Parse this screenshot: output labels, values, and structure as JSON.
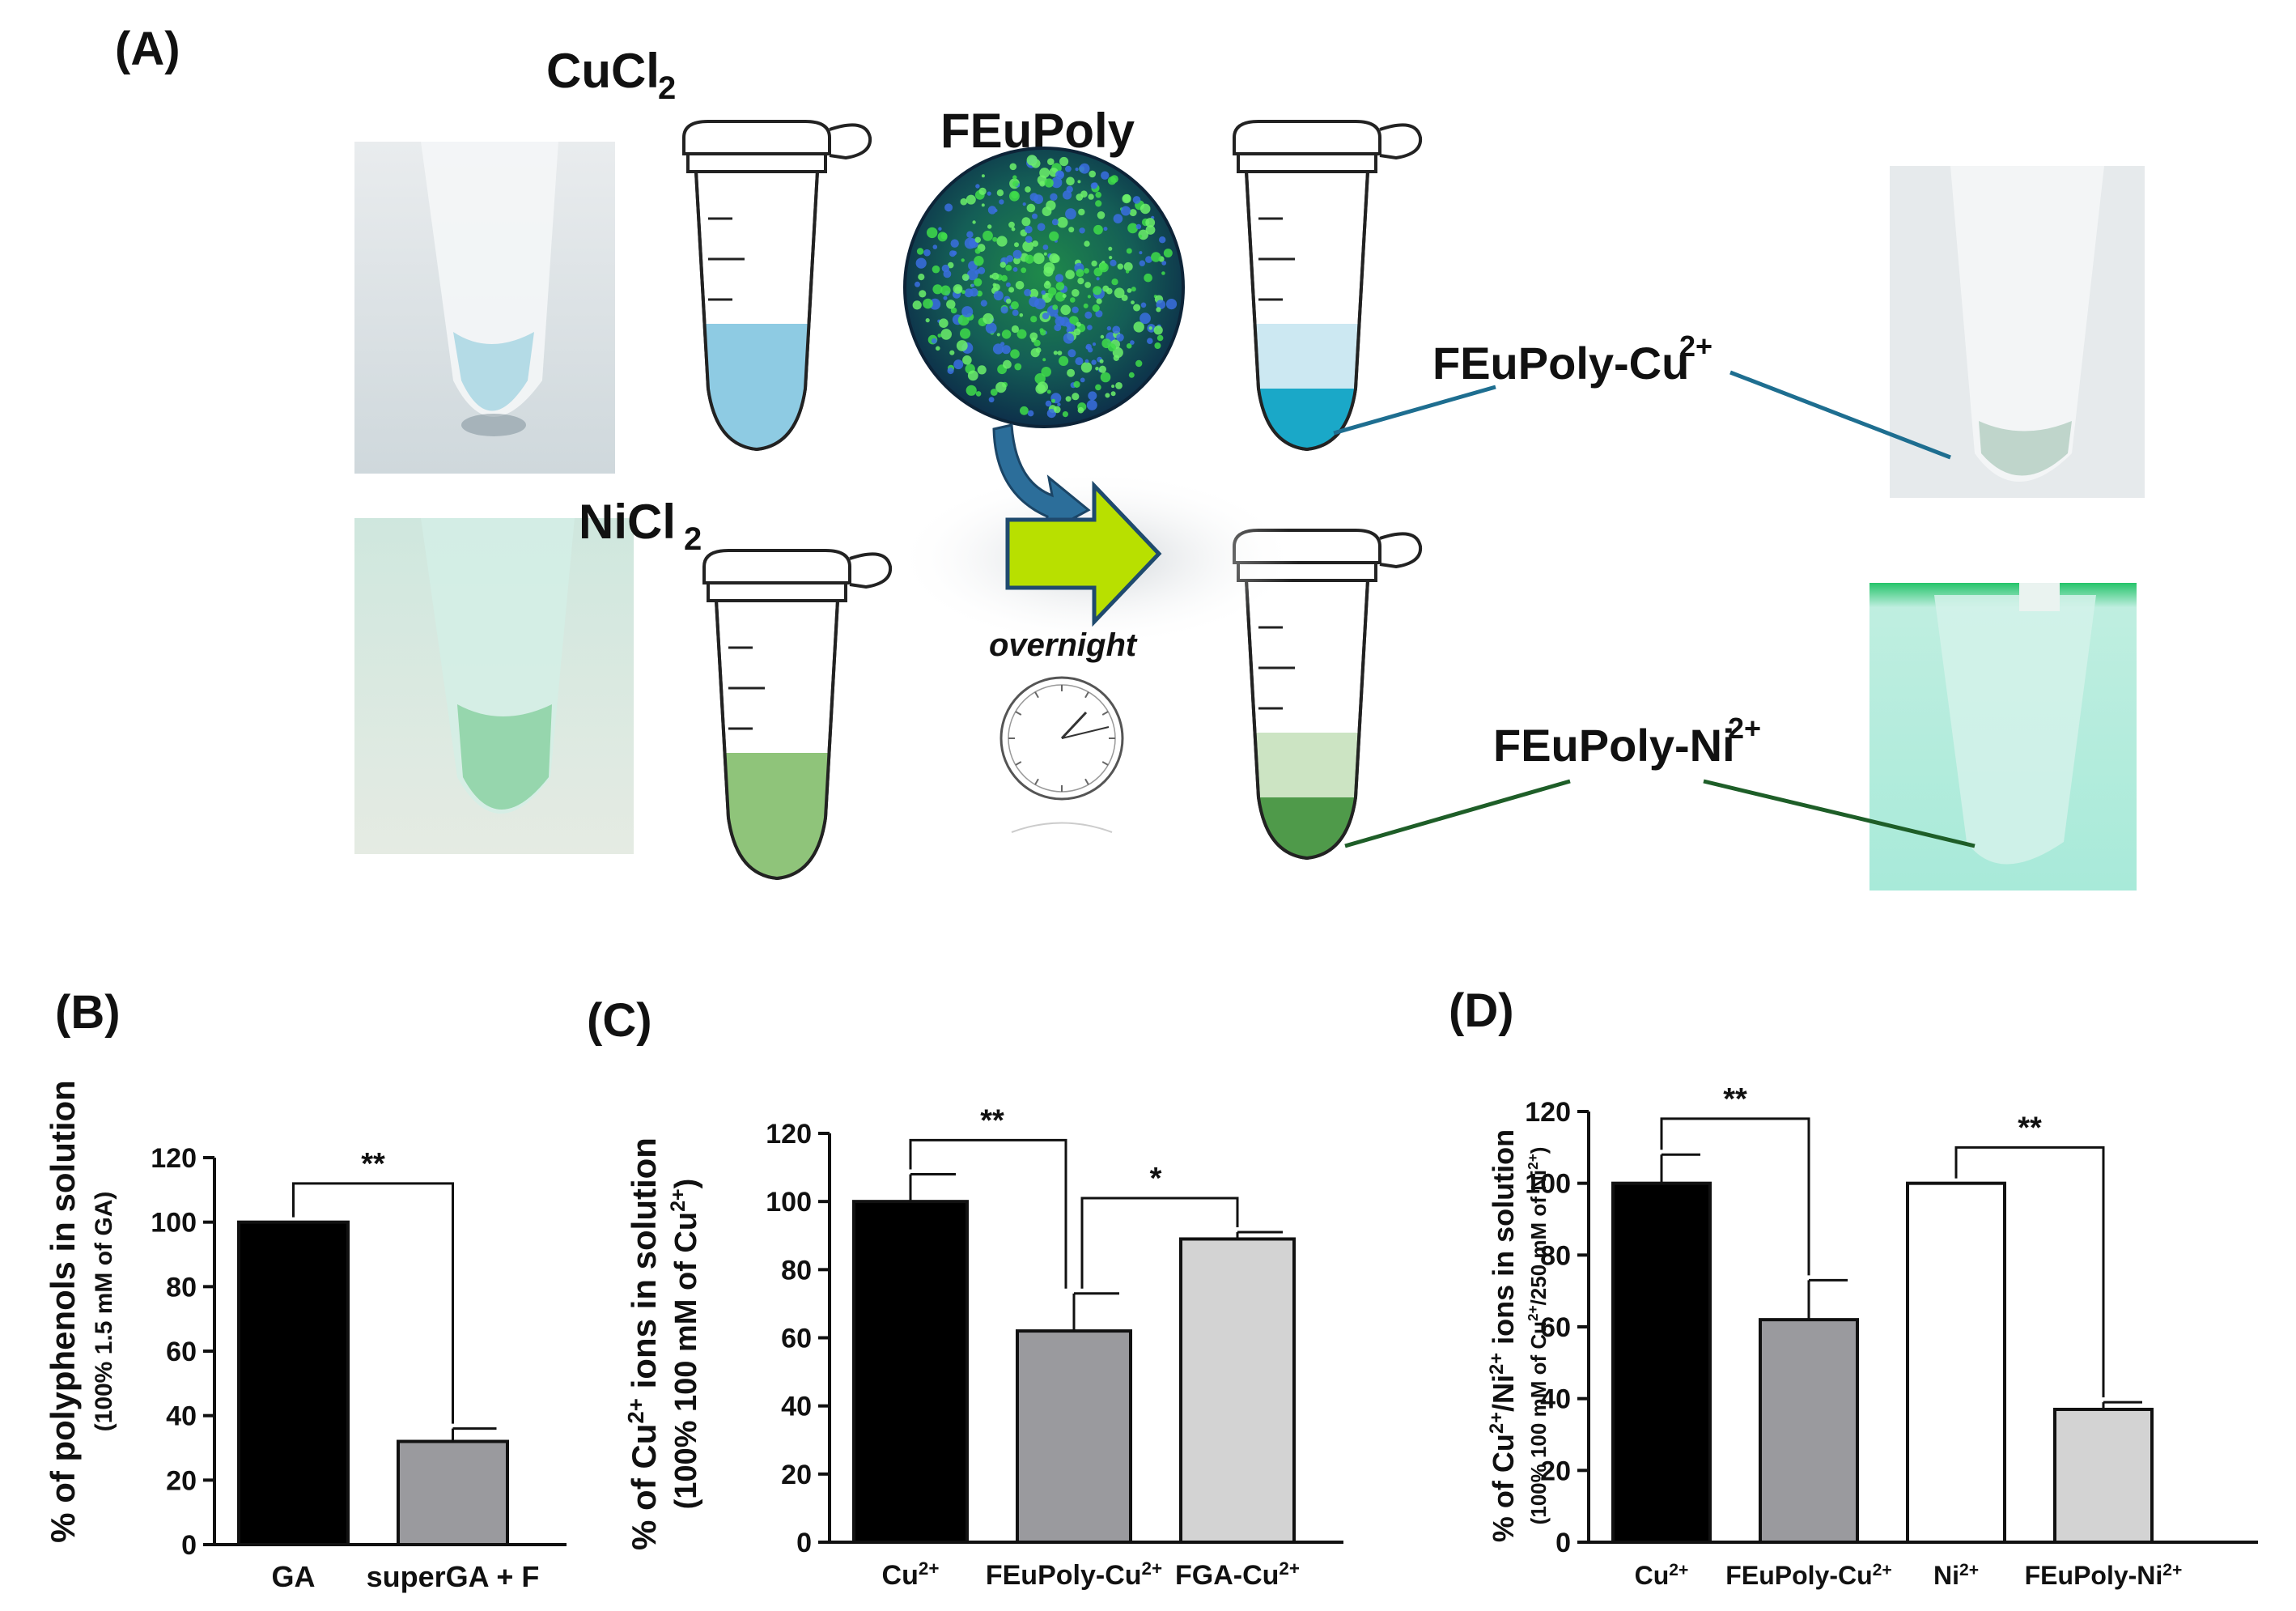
{
  "colors": {
    "cu_solution": "#8ecbe3",
    "cu_pellet": "#1aa8c8",
    "ni_solution": "#8fc47a",
    "ni_pellet": "#4f9a4a",
    "arrow_fill": "#b8e000",
    "arrow_stroke": "#1f4a6e",
    "bar_black": "#000000",
    "bar_dark_grey": "#9a9a9e",
    "bar_light_grey": "#d3d3d3",
    "bar_white": "#ffffff"
  },
  "panel_a": {
    "letter": "(A)",
    "cucl2": {
      "main": "CuCl",
      "sub": "2"
    },
    "nicl2": {
      "main": "NiCl",
      "sub": "2"
    },
    "feupoly": "FEuPoly",
    "overnight": "overnight",
    "product_cu": {
      "main": "FEuPoly-Cu",
      "sup": "2+"
    },
    "product_ni": {
      "main": "FEuPoly-Ni",
      "sup": "2+"
    },
    "clock_icon": "clock-icon",
    "tube_icon": "microcentrifuge-tube-icon"
  },
  "chart_data": [
    {
      "panel": "(B)",
      "type": "bar",
      "categories": [
        "GA",
        "superGA + F"
      ],
      "values": [
        100,
        32
      ],
      "errors": [
        0,
        4
      ],
      "colors": [
        "#000000",
        "#9a9a9e"
      ],
      "ylabel": "% of polyphenols in solution",
      "ylabel_sub": "(100% 1.5 mM of GA)",
      "ylim": [
        0,
        120
      ],
      "yticks": [
        0,
        20,
        40,
        60,
        80,
        100,
        120
      ],
      "significance": [
        {
          "from": 0,
          "to": 1,
          "label": "**"
        }
      ]
    },
    {
      "panel": "(C)",
      "type": "bar",
      "categories": [
        {
          "main": "Cu",
          "sup": "2+"
        },
        {
          "main": "FEuPoly-Cu",
          "sup": "2+"
        },
        {
          "main": "FGA-Cu",
          "sup": "2+"
        }
      ],
      "values": [
        100,
        62,
        89
      ],
      "errors": [
        8,
        11,
        2
      ],
      "colors": [
        "#000000",
        "#9a9a9e",
        "#d3d3d3"
      ],
      "ylabel_parts": {
        "pre": "% of Cu",
        "sup": "2+",
        "post": " ions in solution"
      },
      "ylabel_sub_parts": {
        "pre": "(100% 100 mM of Cu",
        "sup": "2+",
        "post": ")"
      },
      "ylim": [
        0,
        120
      ],
      "yticks": [
        0,
        20,
        40,
        60,
        80,
        100,
        120
      ],
      "significance": [
        {
          "from": 0,
          "to": 1,
          "label": "**"
        },
        {
          "from": 1,
          "to": 2,
          "label": "*"
        }
      ]
    },
    {
      "panel": "(D)",
      "type": "bar",
      "categories": [
        {
          "main": "Cu",
          "sup": "2+"
        },
        {
          "main": "FEuPoly-Cu",
          "sup": "2+"
        },
        {
          "main": "Ni",
          "sup": "2+"
        },
        {
          "main": "FEuPoly-Ni",
          "sup": "2+"
        }
      ],
      "values": [
        100,
        62,
        100,
        37
      ],
      "errors": [
        8,
        11,
        0,
        2
      ],
      "colors": [
        "#000000",
        "#9a9a9e",
        "#ffffff",
        "#d3d3d3"
      ],
      "ylabel_parts": {
        "a": "% of Cu",
        "a_sup": "2+",
        "b": "/Ni",
        "b_sup": "2+",
        "c": " ions in solution"
      },
      "ylabel_sub_parts": {
        "a": "(100% 100 mM of Cu",
        "a_sup": "2+",
        "b": "/250 mM of Ni",
        "b_sup": "2+",
        "c": ")"
      },
      "ylim": [
        0,
        120
      ],
      "yticks": [
        0,
        20,
        40,
        60,
        80,
        100,
        120
      ],
      "significance": [
        {
          "from": 0,
          "to": 1,
          "label": "**"
        },
        {
          "from": 2,
          "to": 3,
          "label": "**"
        }
      ]
    }
  ]
}
